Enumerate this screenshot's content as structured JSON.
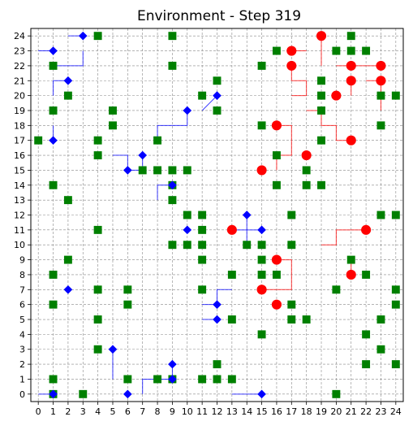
{
  "chart_data": {
    "type": "scatter",
    "title": "Environment - Step 319",
    "xlim": [
      -0.5,
      24.5
    ],
    "ylim": [
      24.5,
      -0.5
    ],
    "y_inverted": true,
    "xticks": [
      0,
      1,
      2,
      3,
      4,
      5,
      6,
      7,
      8,
      9,
      10,
      11,
      12,
      13,
      14,
      15,
      16,
      17,
      18,
      19,
      20,
      21,
      22,
      23,
      24
    ],
    "yticks": [
      0,
      1,
      2,
      3,
      4,
      5,
      6,
      7,
      8,
      9,
      10,
      11,
      12,
      13,
      14,
      15,
      16,
      17,
      18,
      19,
      20,
      21,
      22,
      23,
      24
    ],
    "grid": true,
    "colors": {
      "food": "#008000",
      "blue_agent": "#0000ff",
      "red_agent": "#ff0000",
      "grid": "#888888"
    },
    "series": [
      {
        "marker": "square",
        "color": "#008000",
        "points": [
          [
            1,
            0
          ],
          [
            3,
            0
          ],
          [
            20,
            0
          ],
          [
            1,
            1
          ],
          [
            6,
            1
          ],
          [
            8,
            1
          ],
          [
            9,
            1
          ],
          [
            11,
            1
          ],
          [
            12,
            1
          ],
          [
            13,
            1
          ],
          [
            12,
            2
          ],
          [
            22,
            2
          ],
          [
            24,
            2
          ],
          [
            4,
            3
          ],
          [
            23,
            3
          ],
          [
            15,
            4
          ],
          [
            22,
            4
          ],
          [
            4,
            5
          ],
          [
            13,
            5
          ],
          [
            17,
            5
          ],
          [
            18,
            5
          ],
          [
            23,
            5
          ],
          [
            1,
            6
          ],
          [
            6,
            6
          ],
          [
            17,
            6
          ],
          [
            24,
            6
          ],
          [
            4,
            7
          ],
          [
            6,
            7
          ],
          [
            11,
            7
          ],
          [
            20,
            7
          ],
          [
            24,
            7
          ],
          [
            1,
            8
          ],
          [
            13,
            8
          ],
          [
            15,
            8
          ],
          [
            16,
            8
          ],
          [
            22,
            8
          ],
          [
            2,
            9
          ],
          [
            11,
            9
          ],
          [
            15,
            9
          ],
          [
            21,
            9
          ],
          [
            9,
            10
          ],
          [
            10,
            10
          ],
          [
            11,
            10
          ],
          [
            14,
            10
          ],
          [
            15,
            10
          ],
          [
            17,
            10
          ],
          [
            4,
            11
          ],
          [
            11,
            11
          ],
          [
            10,
            12
          ],
          [
            11,
            12
          ],
          [
            17,
            12
          ],
          [
            23,
            12
          ],
          [
            24,
            12
          ],
          [
            2,
            13
          ],
          [
            9,
            13
          ],
          [
            1,
            14
          ],
          [
            9,
            14
          ],
          [
            16,
            14
          ],
          [
            18,
            14
          ],
          [
            19,
            14
          ],
          [
            7,
            15
          ],
          [
            8,
            15
          ],
          [
            9,
            15
          ],
          [
            10,
            15
          ],
          [
            18,
            15
          ],
          [
            4,
            16
          ],
          [
            16,
            16
          ],
          [
            0,
            17
          ],
          [
            4,
            17
          ],
          [
            8,
            17
          ],
          [
            19,
            17
          ],
          [
            5,
            18
          ],
          [
            15,
            18
          ],
          [
            23,
            18
          ],
          [
            1,
            19
          ],
          [
            5,
            19
          ],
          [
            12,
            19
          ],
          [
            19,
            19
          ],
          [
            2,
            20
          ],
          [
            11,
            20
          ],
          [
            19,
            20
          ],
          [
            23,
            20
          ],
          [
            24,
            20
          ],
          [
            12,
            21
          ],
          [
            19,
            21
          ],
          [
            1,
            22
          ],
          [
            9,
            22
          ],
          [
            15,
            22
          ],
          [
            16,
            23
          ],
          [
            20,
            23
          ],
          [
            21,
            23
          ],
          [
            22,
            23
          ],
          [
            4,
            24
          ],
          [
            9,
            24
          ],
          [
            21,
            24
          ]
        ]
      },
      {
        "marker": "diamond",
        "color": "#0000ff",
        "points": [
          [
            1,
            0
          ],
          [
            6,
            0
          ],
          [
            15,
            0
          ],
          [
            9,
            1
          ],
          [
            9,
            2
          ],
          [
            5,
            3
          ],
          [
            12,
            5
          ],
          [
            12,
            6
          ],
          [
            2,
            7
          ],
          [
            10,
            11
          ],
          [
            15,
            11
          ],
          [
            14,
            12
          ],
          [
            9,
            14
          ],
          [
            6,
            15
          ],
          [
            7,
            16
          ],
          [
            1,
            17
          ],
          [
            10,
            19
          ],
          [
            12,
            20
          ],
          [
            2,
            21
          ],
          [
            1,
            23
          ],
          [
            3,
            24
          ]
        ],
        "trails": [
          [
            [
              0,
              0
            ],
            [
              1,
              0
            ]
          ],
          [
            [
              7,
              0
            ],
            [
              7,
              1
            ],
            [
              9,
              1
            ],
            [
              9,
              2
            ]
          ],
          [
            [
              13,
              0
            ],
            [
              15,
              0
            ]
          ],
          [
            [
              5,
              1
            ],
            [
              5,
              3
            ]
          ],
          [
            [
              11,
              5
            ],
            [
              12,
              5
            ]
          ],
          [
            [
              11,
              6
            ],
            [
              12,
              6
            ],
            [
              12,
              7
            ],
            [
              13,
              7
            ]
          ],
          [
            [
              14,
              10
            ],
            [
              14,
              12
            ]
          ],
          [
            [
              13,
              11
            ],
            [
              15,
              11
            ]
          ],
          [
            [
              8,
              13
            ],
            [
              8,
              14
            ],
            [
              9,
              14
            ]
          ],
          [
            [
              5,
              16
            ],
            [
              6,
              16
            ],
            [
              6,
              15
            ]
          ],
          [
            [
              6,
              15
            ],
            [
              7,
              15
            ],
            [
              7,
              16
            ]
          ],
          [
            [
              1,
              17
            ],
            [
              1,
              18
            ]
          ],
          [
            [
              8,
              17
            ],
            [
              8,
              18
            ],
            [
              10,
              18
            ],
            [
              10,
              19
            ]
          ],
          [
            [
              12,
              20
            ],
            [
              11,
              19
            ]
          ],
          [
            [
              2,
              21
            ],
            [
              1,
              21
            ],
            [
              1,
              20
            ]
          ],
          [
            [
              1,
              22
            ],
            [
              3,
              22
            ],
            [
              3,
              23
            ]
          ],
          [
            [
              0,
              23
            ],
            [
              1,
              23
            ]
          ],
          [
            [
              2,
              24
            ],
            [
              3,
              24
            ]
          ]
        ]
      },
      {
        "marker": "circle",
        "color": "#ff0000",
        "points": [
          [
            16,
            6
          ],
          [
            15,
            7
          ],
          [
            21,
            8
          ],
          [
            16,
            9
          ],
          [
            13,
            11
          ],
          [
            22,
            11
          ],
          [
            15,
            15
          ],
          [
            18,
            16
          ],
          [
            21,
            17
          ],
          [
            16,
            18
          ],
          [
            20,
            20
          ],
          [
            21,
            21
          ],
          [
            23,
            21
          ],
          [
            17,
            22
          ],
          [
            21,
            22
          ],
          [
            23,
            22
          ],
          [
            17,
            23
          ],
          [
            19,
            24
          ]
        ],
        "trails": [
          [
            [
              15,
              7
            ],
            [
              17,
              7
            ],
            [
              17,
              8
            ]
          ],
          [
            [
              21,
              8
            ],
            [
              21,
              9
            ]
          ],
          [
            [
              16,
              9
            ],
            [
              17,
              9
            ],
            [
              17,
              8
            ]
          ],
          [
            [
              19,
              10
            ],
            [
              20,
              10
            ],
            [
              20,
              11
            ],
            [
              22,
              11
            ]
          ],
          [
            [
              16,
              15
            ],
            [
              16,
              16
            ],
            [
              17,
              16
            ],
            [
              17,
              18
            ],
            [
              16,
              18
            ]
          ],
          [
            [
              18,
              19
            ],
            [
              19,
              19
            ],
            [
              19,
              18
            ],
            [
              20,
              18
            ],
            [
              20,
              17
            ],
            [
              21,
              17
            ]
          ],
          [
            [
              17,
              20
            ],
            [
              18,
              20
            ],
            [
              18,
              21
            ],
            [
              17,
              21
            ],
            [
              17,
              22
            ]
          ],
          [
            [
              21,
              20
            ],
            [
              21,
              21
            ]
          ],
          [
            [
              22,
              21
            ],
            [
              23,
              21
            ],
            [
              23,
              19
            ]
          ],
          [
            [
              20,
              22
            ],
            [
              21,
              22
            ],
            [
              22,
              22
            ],
            [
              23,
              22
            ]
          ],
          [
            [
              17,
              23
            ],
            [
              18,
              23
            ]
          ],
          [
            [
              19,
              22
            ],
            [
              19,
              24
            ]
          ]
        ]
      }
    ]
  }
}
